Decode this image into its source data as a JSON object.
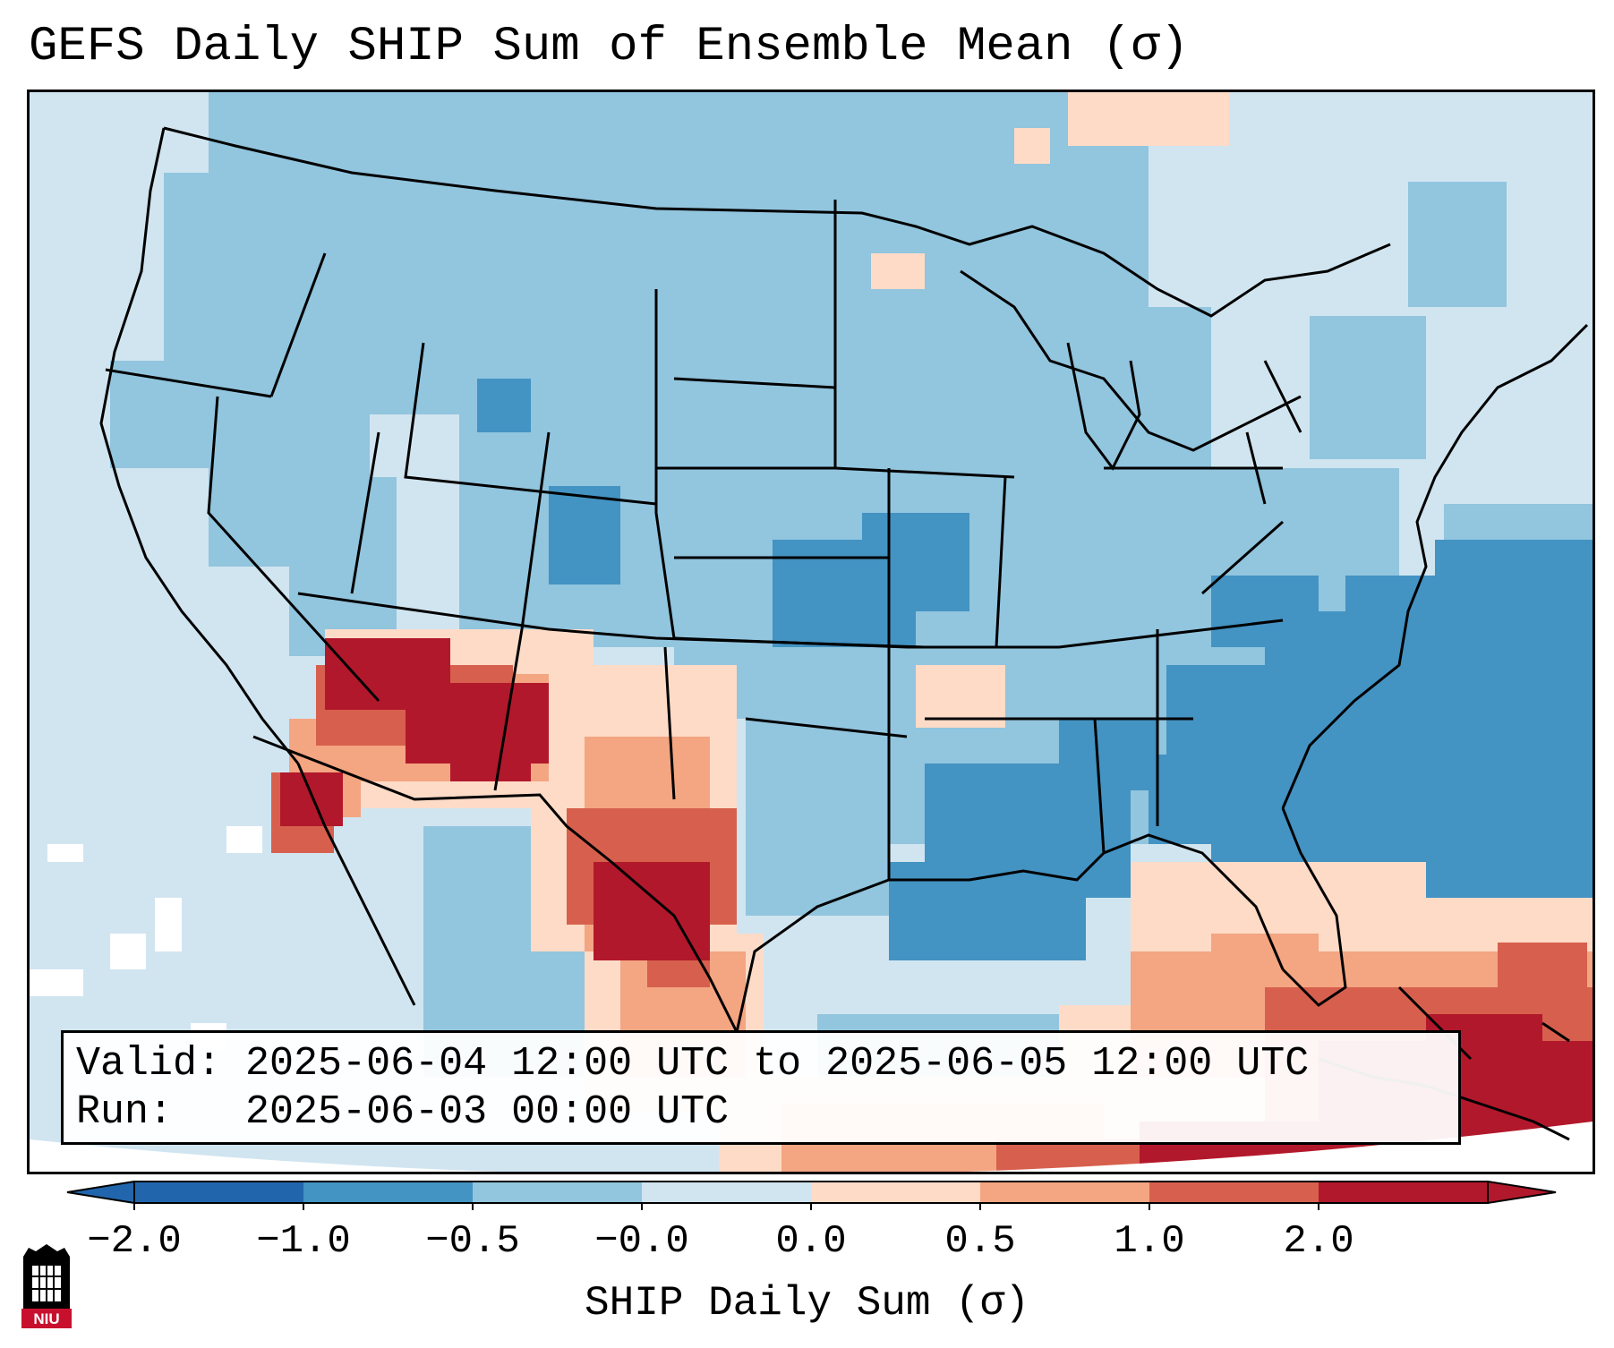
{
  "title": "GEFS Daily SHIP Sum of Ensemble Mean (σ)",
  "info": {
    "valid_label": "Valid:",
    "valid_value": "2025-06-04 12:00 UTC to 2025-06-05 12:00 UTC",
    "run_label": "Run:",
    "run_value": "2025-06-03 00:00 UTC"
  },
  "colorbar": {
    "label": "SHIP Daily Sum (σ)",
    "ticks": [
      "−2.0",
      "−1.0",
      "−0.5",
      "−0.0",
      "0.0",
      "0.5",
      "1.0",
      "2.0"
    ],
    "bin_colors": [
      "#2166ac",
      "#4393c3",
      "#92c5de",
      "#d1e5f0",
      "#fddbc7",
      "#f4a582",
      "#d6604d",
      "#b2182b"
    ]
  },
  "map": {
    "region": "CONUS",
    "variable": "SHIP Daily Sum",
    "high_anomaly_regions": [
      "Southern Nevada / Utah",
      "West Texas",
      "Florida Straits / Bahamas"
    ],
    "low_anomaly_regions": [
      "Southeast US / Atlantic",
      "Kansas",
      "Louisiana / Gulf"
    ]
  },
  "logo": {
    "text": "NIU",
    "colors": {
      "primary": "#c8102e",
      "secondary": "#000000"
    }
  }
}
